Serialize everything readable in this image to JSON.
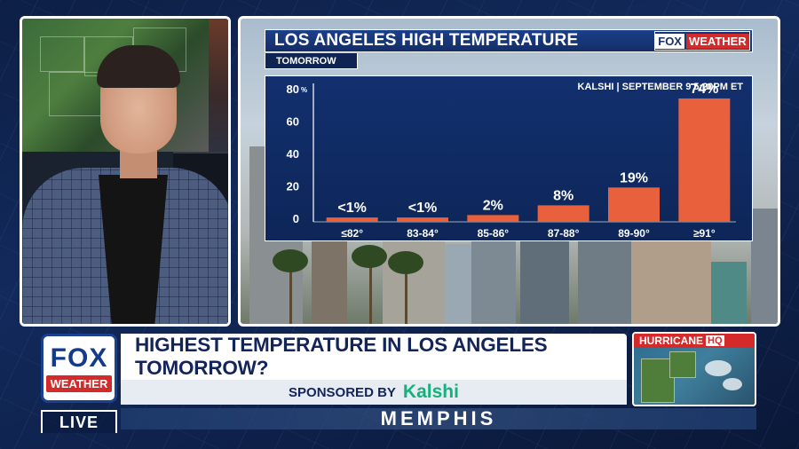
{
  "chart": {
    "title": "LOS ANGELES HIGH TEMPERATURE",
    "subtitle": "TOMORROW",
    "source": "KALSHI | SEPTEMBER 9 5:20PM ET",
    "brand_fox": "FOX",
    "brand_weather": "WEATHER"
  },
  "chart_data": {
    "type": "bar",
    "title": "LOS ANGELES HIGH TEMPERATURE",
    "subtitle": "TOMORROW",
    "categories": [
      "≤82°",
      "83-84°",
      "85-86°",
      "87-88°",
      "89-90°",
      "≥91°"
    ],
    "values": [
      0.5,
      0.5,
      2,
      8,
      19,
      74
    ],
    "value_labels": [
      "<1%",
      "<1%",
      "2%",
      "8%",
      "19%",
      "74%"
    ],
    "ylim": [
      0,
      80
    ],
    "yticks": [
      0,
      20,
      40,
      60,
      80
    ],
    "y_unit": "%",
    "xlabel": "",
    "ylabel": "",
    "grid": false,
    "annotation": "KALSHI | SEPTEMBER 9 5:20PM ET",
    "bar_color": "#e8613c",
    "background_color": "#12306f"
  },
  "lower_third": {
    "logo_fox": "FOX",
    "logo_weather": "WEATHER",
    "headline": "HIGHEST TEMPERATURE IN LOS ANGELES TOMORROW?",
    "sponsored_by": "SPONSORED BY",
    "sponsor": "Kalshi",
    "hurricane_label": "HURRICANE",
    "hurricane_hq": "HQ",
    "live": "LIVE",
    "city": "MEMPHIS"
  },
  "colors": {
    "accent_red": "#d42a2a",
    "navy": "#12245a",
    "kalshi_green": "#16b07a"
  }
}
